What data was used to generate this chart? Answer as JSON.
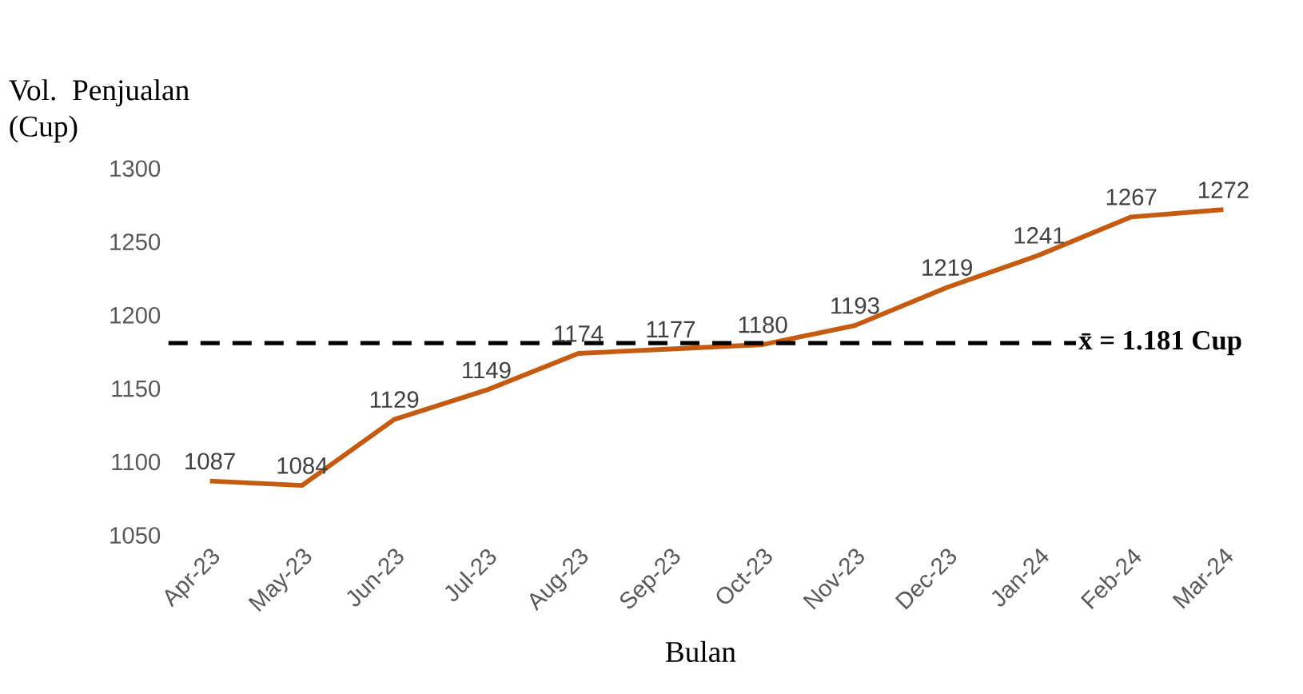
{
  "chart_data": {
    "type": "line",
    "xlabel": "Bulan",
    "ylabel": "Vol. Penjualan (Cup)",
    "categories": [
      "Apr-23",
      "May-23",
      "Jun-23",
      "Jul-23",
      "Aug-23",
      "Sep-23",
      "Oct-23",
      "Nov-23",
      "Dec-23",
      "Jan-24",
      "Feb-24",
      "Mar-24"
    ],
    "series": [
      {
        "color": "#c55a11",
        "values": [
          1087,
          1084,
          1129,
          1149,
          1174,
          1177,
          1180,
          1193,
          1219,
          1241,
          1267,
          1272
        ]
      }
    ],
    "ylim": [
      1050,
      1300
    ],
    "yticks": [
      1050,
      1100,
      1150,
      1200,
      1250,
      1300
    ],
    "ref_lines": [
      {
        "axis": "y",
        "value": 1181,
        "label": "x̄ = 1.181 Cup",
        "color": "#000000",
        "line_style": "dashed"
      }
    ],
    "data_labels": true,
    "grid": false,
    "legend": false,
    "marker": "none",
    "line_style": "solid"
  }
}
